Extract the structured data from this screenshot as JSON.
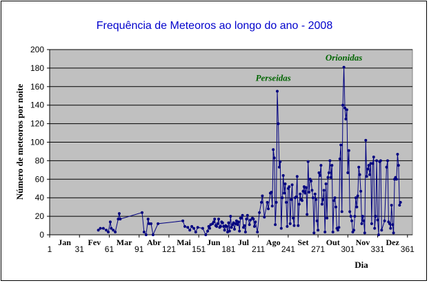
{
  "chart_data": {
    "type": "line",
    "title": "Frequência de Meteoros ao longo do ano - 2008",
    "xlabel": "Dia",
    "ylabel": "Número de meteoros por noite",
    "xlim": [
      1,
      366
    ],
    "ylim": [
      0,
      200
    ],
    "x_ticks": [
      1,
      31,
      61,
      91,
      121,
      151,
      181,
      211,
      241,
      271,
      301,
      331,
      361
    ],
    "x_tick_labels": [
      "1",
      "31",
      "61",
      "91",
      "121",
      "151",
      "181",
      "211",
      "241",
      "271",
      "301",
      "331",
      "361"
    ],
    "y_ticks": [
      0,
      20,
      40,
      60,
      80,
      100,
      120,
      140,
      160,
      180,
      200
    ],
    "y_tick_labels": [
      "0",
      "20",
      "40",
      "60",
      "80",
      "100",
      "120",
      "140",
      "160",
      "180",
      "200"
    ],
    "months": [
      {
        "label": "Jan",
        "x": 16
      },
      {
        "label": "Fev",
        "x": 46
      },
      {
        "label": "Mar",
        "x": 76
      },
      {
        "label": "Abr",
        "x": 106
      },
      {
        "label": "Mai",
        "x": 136
      },
      {
        "label": "Jun",
        "x": 166
      },
      {
        "label": "Jul",
        "x": 196
      },
      {
        "label": "Ago",
        "x": 226
      },
      {
        "label": "Set",
        "x": 256
      },
      {
        "label": "Out",
        "x": 286
      },
      {
        "label": "Nov",
        "x": 316
      },
      {
        "label": "Dez",
        "x": 346
      }
    ],
    "grid": {
      "horizontal": true,
      "vertical": false
    },
    "colors": {
      "plot_area": "#c0c0c0",
      "line": "#000080",
      "title": "#0000cc",
      "annotation": "#006600"
    },
    "annotations": [
      {
        "text": "Perseidas",
        "x": 226,
        "y": 166
      },
      {
        "text": "Orionidas",
        "x": 297,
        "y": 188
      }
    ],
    "series": [
      {
        "values": [
          [
            50,
            5
          ],
          [
            52,
            7
          ],
          [
            55,
            7
          ],
          [
            58,
            5
          ],
          [
            60,
            3
          ],
          [
            62,
            14
          ],
          [
            63,
            7
          ],
          [
            65,
            5
          ],
          [
            67,
            3
          ],
          [
            70,
            17
          ],
          [
            71,
            23
          ],
          [
            72,
            17
          ],
          [
            94,
            24
          ],
          [
            96,
            3
          ],
          [
            98,
            0
          ],
          [
            100,
            17
          ],
          [
            101,
            12
          ],
          [
            103,
            12
          ],
          [
            105,
            0
          ],
          [
            110,
            12
          ],
          [
            135,
            15
          ],
          [
            137,
            9
          ],
          [
            140,
            8
          ],
          [
            142,
            5
          ],
          [
            144,
            9
          ],
          [
            146,
            7
          ],
          [
            148,
            3
          ],
          [
            150,
            8
          ],
          [
            155,
            7
          ],
          [
            158,
            0
          ],
          [
            160,
            4
          ],
          [
            161,
            9
          ],
          [
            162,
            7
          ],
          [
            163,
            11
          ],
          [
            165,
            12
          ],
          [
            166,
            14
          ],
          [
            167,
            17
          ],
          [
            168,
            10
          ],
          [
            169,
            9
          ],
          [
            170,
            12
          ],
          [
            171,
            17
          ],
          [
            172,
            8
          ],
          [
            173,
            9
          ],
          [
            174,
            14
          ],
          [
            175,
            13
          ],
          [
            176,
            9
          ],
          [
            177,
            5
          ],
          [
            178,
            10
          ],
          [
            179,
            9
          ],
          [
            180,
            3
          ],
          [
            181,
            13
          ],
          [
            182,
            4
          ],
          [
            183,
            20
          ],
          [
            184,
            8
          ],
          [
            185,
            11
          ],
          [
            186,
            13
          ],
          [
            187,
            6
          ],
          [
            188,
            12
          ],
          [
            189,
            15
          ],
          [
            190,
            11
          ],
          [
            191,
            14
          ],
          [
            192,
            4
          ],
          [
            193,
            18
          ],
          [
            194,
            18
          ],
          [
            195,
            21
          ],
          [
            196,
            8
          ],
          [
            197,
            10
          ],
          [
            198,
            3
          ],
          [
            199,
            17
          ],
          [
            200,
            21
          ],
          [
            202,
            11
          ],
          [
            203,
            16
          ],
          [
            205,
            18
          ],
          [
            206,
            17
          ],
          [
            207,
            9
          ],
          [
            208,
            14
          ],
          [
            210,
            3
          ],
          [
            212,
            24
          ],
          [
            214,
            35
          ],
          [
            215,
            42
          ],
          [
            217,
            19
          ],
          [
            220,
            35
          ],
          [
            221,
            28
          ],
          [
            223,
            45
          ],
          [
            224,
            46
          ],
          [
            225,
            31
          ],
          [
            226,
            92
          ],
          [
            227,
            83
          ],
          [
            228,
            11
          ],
          [
            229,
            35
          ],
          [
            230,
            155
          ],
          [
            231,
            120
          ],
          [
            232,
            73
          ],
          [
            233,
            79
          ],
          [
            234,
            7
          ],
          [
            235,
            40
          ],
          [
            236,
            64
          ],
          [
            237,
            45
          ],
          [
            238,
            55
          ],
          [
            239,
            35
          ],
          [
            240,
            9
          ],
          [
            241,
            50
          ],
          [
            242,
            52
          ],
          [
            243,
            12
          ],
          [
            244,
            38
          ],
          [
            245,
            54
          ],
          [
            246,
            18
          ],
          [
            247,
            10
          ],
          [
            248,
            40
          ],
          [
            249,
            41
          ],
          [
            250,
            63
          ],
          [
            251,
            10
          ],
          [
            252,
            33
          ],
          [
            253,
            44
          ],
          [
            254,
            38
          ],
          [
            255,
            37
          ],
          [
            256,
            47
          ],
          [
            257,
            52
          ],
          [
            258,
            45
          ],
          [
            259,
            51
          ],
          [
            260,
            22
          ],
          [
            261,
            79
          ],
          [
            262,
            46
          ],
          [
            263,
            60
          ],
          [
            264,
            58
          ],
          [
            265,
            48
          ],
          [
            266,
            40
          ],
          [
            267,
            2
          ],
          [
            268,
            44
          ],
          [
            269,
            38
          ],
          [
            270,
            15
          ],
          [
            271,
            5
          ],
          [
            272,
            67
          ],
          [
            273,
            64
          ],
          [
            274,
            75
          ],
          [
            275,
            33
          ],
          [
            276,
            38
          ],
          [
            277,
            48
          ],
          [
            278,
            3
          ],
          [
            279,
            55
          ],
          [
            280,
            18
          ],
          [
            281,
            62
          ],
          [
            282,
            67
          ],
          [
            283,
            80
          ],
          [
            284,
            62
          ],
          [
            285,
            75
          ],
          [
            286,
            3
          ],
          [
            287,
            37
          ],
          [
            288,
            40
          ],
          [
            289,
            30
          ],
          [
            290,
            7
          ],
          [
            291,
            5
          ],
          [
            292,
            8
          ],
          [
            293,
            82
          ],
          [
            294,
            97
          ],
          [
            295,
            25
          ],
          [
            296,
            140
          ],
          [
            297,
            181
          ],
          [
            298,
            137
          ],
          [
            299,
            125
          ],
          [
            300,
            135
          ],
          [
            301,
            67
          ],
          [
            302,
            91
          ],
          [
            303,
            25
          ],
          [
            304,
            20
          ],
          [
            305,
            15
          ],
          [
            306,
            3
          ],
          [
            307,
            5
          ],
          [
            308,
            20
          ],
          [
            309,
            40
          ],
          [
            310,
            30
          ],
          [
            311,
            42
          ],
          [
            312,
            73
          ],
          [
            313,
            65
          ],
          [
            314,
            47
          ],
          [
            315,
            12
          ],
          [
            316,
            20
          ],
          [
            317,
            15
          ],
          [
            318,
            2
          ],
          [
            319,
            102
          ],
          [
            320,
            63
          ],
          [
            321,
            71
          ],
          [
            322,
            75
          ],
          [
            323,
            65
          ],
          [
            324,
            77
          ],
          [
            325,
            12
          ],
          [
            326,
            77
          ],
          [
            327,
            84
          ],
          [
            328,
            7
          ],
          [
            329,
            20
          ],
          [
            330,
            80
          ],
          [
            331,
            16
          ],
          [
            332,
            0
          ],
          [
            333,
            79
          ],
          [
            334,
            80
          ],
          [
            335,
            5
          ],
          [
            338,
            15
          ],
          [
            340,
            73
          ],
          [
            341,
            80
          ],
          [
            342,
            14
          ],
          [
            343,
            12
          ],
          [
            344,
            7
          ],
          [
            345,
            32
          ],
          [
            346,
            11
          ],
          [
            347,
            2
          ],
          [
            348,
            60
          ],
          [
            349,
            62
          ],
          [
            350,
            60
          ],
          [
            351,
            87
          ],
          [
            352,
            75
          ],
          [
            353,
            32
          ],
          [
            354,
            35
          ]
        ]
      }
    ]
  }
}
